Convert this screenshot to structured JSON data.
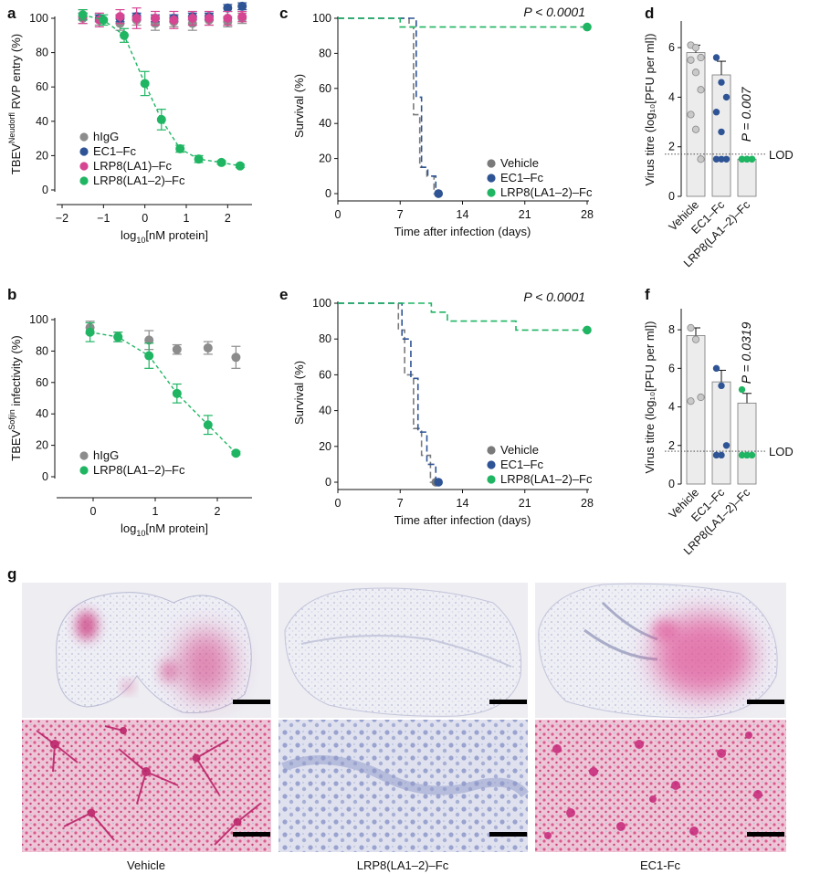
{
  "panels": {
    "a": "a",
    "b": "b",
    "c": "c",
    "d": "d",
    "e": "e",
    "f": "f",
    "g": "g"
  },
  "colors": {
    "hIgG": "#8c8c8c",
    "EC1-Fc": "#2f5496",
    "LRP8(LA1)-Fc": "#d64592",
    "LRP8(LA1-2)-Fc": "#1fb562",
    "Vehicle": "#7a7a7a"
  },
  "chart_data": [
    {
      "id": "a",
      "type": "line",
      "ylabel_main": "TBEV",
      "ylabel_sup": "Neudorfl",
      "ylabel_rest": " RVP entry (%)",
      "xlabel_main": "log",
      "xlabel_sub": "10",
      "xlabel_rest": "[nM protein]",
      "xlim": [
        -2,
        2.5
      ],
      "ylim": [
        0,
        100
      ],
      "xticks": [
        -2,
        -1,
        0,
        1,
        2
      ],
      "xtick_labels": [
        "−2",
        "−1",
        "0",
        "1",
        "2"
      ],
      "yticks": [
        0,
        20,
        40,
        60,
        80,
        100
      ],
      "legend": [
        "hIgG",
        "EC1–Fc",
        "LRP8(LA1)–Fc",
        "LRP8(LA1–2)–Fc"
      ],
      "series": [
        {
          "name": "hIgG",
          "x": [
            -1.5,
            -1.1,
            -0.6,
            -0.2,
            0.25,
            0.7,
            1.15,
            1.55,
            2.0,
            2.35
          ],
          "y": [
            100,
            99,
            97,
            99,
            97,
            98,
            97,
            99,
            98,
            100
          ],
          "err": [
            3,
            3,
            4,
            3,
            4,
            3,
            4,
            3,
            3,
            3
          ]
        },
        {
          "name": "EC1–Fc",
          "x": [
            -1.5,
            -1.1,
            -0.6,
            -0.2,
            0.25,
            0.7,
            1.15,
            1.55,
            2.0,
            2.35
          ],
          "y": [
            101,
            100,
            100,
            101,
            100,
            100,
            101,
            101,
            106,
            107
          ],
          "err": [
            2,
            2,
            2,
            2,
            2,
            2,
            2,
            2,
            2,
            2
          ]
        },
        {
          "name": "LRP8(LA1)–Fc",
          "x": [
            -1.5,
            -1.1,
            -0.6,
            -0.2,
            0.25,
            0.7,
            1.15,
            1.55,
            2.0,
            2.35
          ],
          "y": [
            101,
            99,
            101,
            100,
            100,
            99,
            100,
            100,
            100,
            101
          ],
          "err": [
            4,
            4,
            4,
            6,
            4,
            5,
            4,
            4,
            4,
            3
          ]
        },
        {
          "name": "LRP8(LA1–2)–Fc",
          "x": [
            -1.5,
            -1.0,
            -0.5,
            0.0,
            0.4,
            0.85,
            1.3,
            1.85,
            2.3
          ],
          "y": [
            102,
            99,
            90,
            62,
            41,
            24,
            18,
            16,
            14
          ],
          "err": [
            3,
            3,
            4,
            7,
            6,
            2,
            2,
            1,
            1
          ],
          "dashed_fit": true
        }
      ]
    },
    {
      "id": "b",
      "type": "line",
      "ylabel_main": "TBEV",
      "ylabel_sup": "Sofjin",
      "ylabel_rest": " infectivity (%)",
      "xlabel_main": "log",
      "xlabel_sub": "10",
      "xlabel_rest": "[nM protein]",
      "xlim": [
        -0.5,
        2.5
      ],
      "ylim": [
        0,
        100
      ],
      "xticks": [
        0,
        1,
        2
      ],
      "xtick_labels": [
        "0",
        "1",
        "2"
      ],
      "yticks": [
        0,
        20,
        40,
        60,
        80,
        100
      ],
      "legend": [
        "hIgG",
        "LRP8(LA1–2)–Fc"
      ],
      "series": [
        {
          "name": "hIgG",
          "x": [
            -0.05,
            0.4,
            0.9,
            1.35,
            1.85,
            2.3
          ],
          "y": [
            95,
            89,
            87,
            81,
            82,
            76
          ],
          "err": [
            4,
            3,
            6,
            3,
            4,
            7
          ]
        },
        {
          "name": "LRP8(LA1–2)–Fc",
          "x": [
            -0.05,
            0.4,
            0.9,
            1.35,
            1.85,
            2.3
          ],
          "y": [
            92,
            89,
            77,
            53,
            33,
            15
          ],
          "err": [
            6,
            3,
            8,
            6,
            6,
            1
          ],
          "dashed_fit": true
        }
      ]
    },
    {
      "id": "c",
      "type": "line",
      "subtype": "survival",
      "ylabel": "Survival (%)",
      "xlabel": "Time after infection (days)",
      "xlim": [
        0,
        28
      ],
      "ylim": [
        0,
        100
      ],
      "xticks": [
        0,
        7,
        14,
        21,
        28
      ],
      "yticks": [
        0,
        20,
        40,
        60,
        80,
        100
      ],
      "annotation": "P < 0.0001",
      "legend": [
        "Vehicle",
        "EC1–Fc",
        "LRP8(LA1–2)–Fc"
      ],
      "series": [
        {
          "name": "Vehicle",
          "steps": [
            [
              0,
              100
            ],
            [
              8,
              100
            ],
            [
              8,
              95
            ],
            [
              8.5,
              95
            ],
            [
              8.5,
              45
            ],
            [
              9.2,
              45
            ],
            [
              9.2,
              15
            ],
            [
              10,
              15
            ],
            [
              10,
              10
            ],
            [
              10.8,
              10
            ],
            [
              10.8,
              0
            ],
            [
              11.3,
              0
            ]
          ]
        },
        {
          "name": "EC1–Fc",
          "steps": [
            [
              0,
              100
            ],
            [
              8.8,
              100
            ],
            [
              8.8,
              55
            ],
            [
              9.4,
              55
            ],
            [
              9.4,
              15
            ],
            [
              10.1,
              15
            ],
            [
              10.1,
              10
            ],
            [
              11,
              10
            ],
            [
              11,
              0
            ],
            [
              11.3,
              0
            ]
          ]
        },
        {
          "name": "LRP8(LA1–2)–Fc",
          "steps": [
            [
              0,
              100
            ],
            [
              7,
              100
            ],
            [
              7,
              95
            ],
            [
              28,
              95
            ]
          ]
        }
      ]
    },
    {
      "id": "e",
      "type": "line",
      "subtype": "survival",
      "ylabel": "Survival (%)",
      "xlabel": "Time after infection (days)",
      "xlim": [
        0,
        28
      ],
      "ylim": [
        0,
        100
      ],
      "xticks": [
        0,
        7,
        14,
        21,
        28
      ],
      "yticks": [
        0,
        20,
        40,
        60,
        80,
        100
      ],
      "annotation": "P < 0.0001",
      "legend": [
        "Vehicle",
        "EC1–Fc",
        "LRP8(LA1–2)–Fc"
      ],
      "series": [
        {
          "name": "Vehicle",
          "steps": [
            [
              0,
              100
            ],
            [
              6.8,
              100
            ],
            [
              6.8,
              85
            ],
            [
              7.5,
              85
            ],
            [
              7.5,
              60
            ],
            [
              8.5,
              60
            ],
            [
              8.5,
              30
            ],
            [
              9.4,
              30
            ],
            [
              9.4,
              15
            ],
            [
              10.4,
              15
            ],
            [
              10.4,
              0
            ],
            [
              11,
              0
            ]
          ]
        },
        {
          "name": "EC1–Fc",
          "steps": [
            [
              0,
              100
            ],
            [
              7.2,
              100
            ],
            [
              7.2,
              80
            ],
            [
              8.2,
              80
            ],
            [
              8.2,
              58
            ],
            [
              9,
              58
            ],
            [
              9,
              28
            ],
            [
              10,
              28
            ],
            [
              10,
              10
            ],
            [
              11,
              10
            ],
            [
              11,
              0
            ],
            [
              11.3,
              0
            ]
          ]
        },
        {
          "name": "LRP8(LA1–2)–Fc",
          "steps": [
            [
              0,
              100
            ],
            [
              10.5,
              100
            ],
            [
              10.5,
              95
            ],
            [
              12.3,
              95
            ],
            [
              12.3,
              90
            ],
            [
              20,
              90
            ],
            [
              20,
              85
            ],
            [
              28,
              85
            ]
          ]
        }
      ]
    },
    {
      "id": "d",
      "type": "bar",
      "ylabel": "Virus titre (log₁₀[PFU per ml])",
      "ylim": [
        0,
        7
      ],
      "yticks": [
        0,
        2,
        4,
        6
      ],
      "categories": [
        "Vehicle",
        "EC1–Fc",
        "LRP8(LA1–2)–Fc"
      ],
      "values": [
        5.8,
        4.9,
        1.5
      ],
      "errors": [
        0.3,
        0.55,
        0.05
      ],
      "points": [
        [
          6.1,
          6.0,
          5.6,
          5.5,
          5.0,
          4.3,
          3.3,
          2.7,
          1.5
        ],
        [
          5.6,
          4.6,
          4.0,
          3.4,
          2.6,
          1.5,
          1.5,
          1.5
        ],
        [
          1.5,
          1.5,
          1.5,
          1.5,
          1.5,
          1.5,
          1.5,
          1.5
        ]
      ],
      "lod": 1.7,
      "lod_label": "LOD",
      "annotation": "P = 0.007"
    },
    {
      "id": "f",
      "type": "bar",
      "ylabel": "Virus titre (log₁₀[PFU per ml])",
      "ylim": [
        0,
        9
      ],
      "yticks": [
        0,
        2,
        4,
        6,
        8
      ],
      "categories": [
        "Vehicle",
        "EC1–Fc",
        "LRP8(LA1–2)–Fc"
      ],
      "values": [
        7.7,
        5.3,
        4.2
      ],
      "errors": [
        0.4,
        0.6,
        0.5
      ],
      "points": [
        [
          8.1,
          7.5,
          4.5,
          4.3
        ],
        [
          6.0,
          5.1,
          2.0,
          1.5,
          1.5
        ],
        [
          4.9,
          1.5,
          1.5,
          1.5,
          1.5
        ]
      ],
      "lod": 1.7,
      "lod_label": "LOD",
      "annotation": "P = 0.0319"
    }
  ],
  "panel_g": {
    "captions": [
      "Vehicle",
      "LRP8(LA1–2)–Fc",
      "EC1-Fc"
    ]
  }
}
